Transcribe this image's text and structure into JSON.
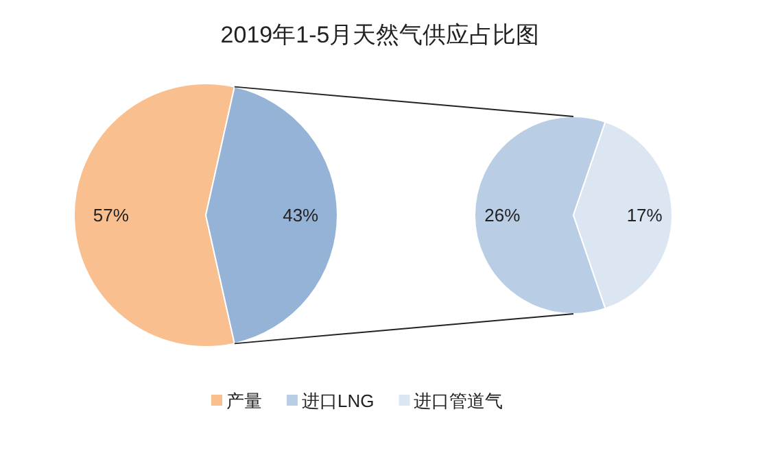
{
  "chart_data": [
    {
      "type": "pie",
      "title": "2019年1-5月天然气供应占比图",
      "categories": [
        "产量",
        null
      ],
      "values": [
        57,
        43
      ],
      "colors": [
        "#f9bf8f",
        "#95b3d7"
      ],
      "value_labels": [
        "57%",
        "43%"
      ],
      "legend": "bottom"
    },
    {
      "type": "pie",
      "categories": [
        "进口LNG",
        "进口管道气"
      ],
      "values": [
        26,
        17
      ],
      "colors": [
        "#b9cde5",
        "#dce6f2"
      ],
      "value_labels": [
        "26%",
        "17%"
      ],
      "legend": "bottom"
    }
  ]
}
